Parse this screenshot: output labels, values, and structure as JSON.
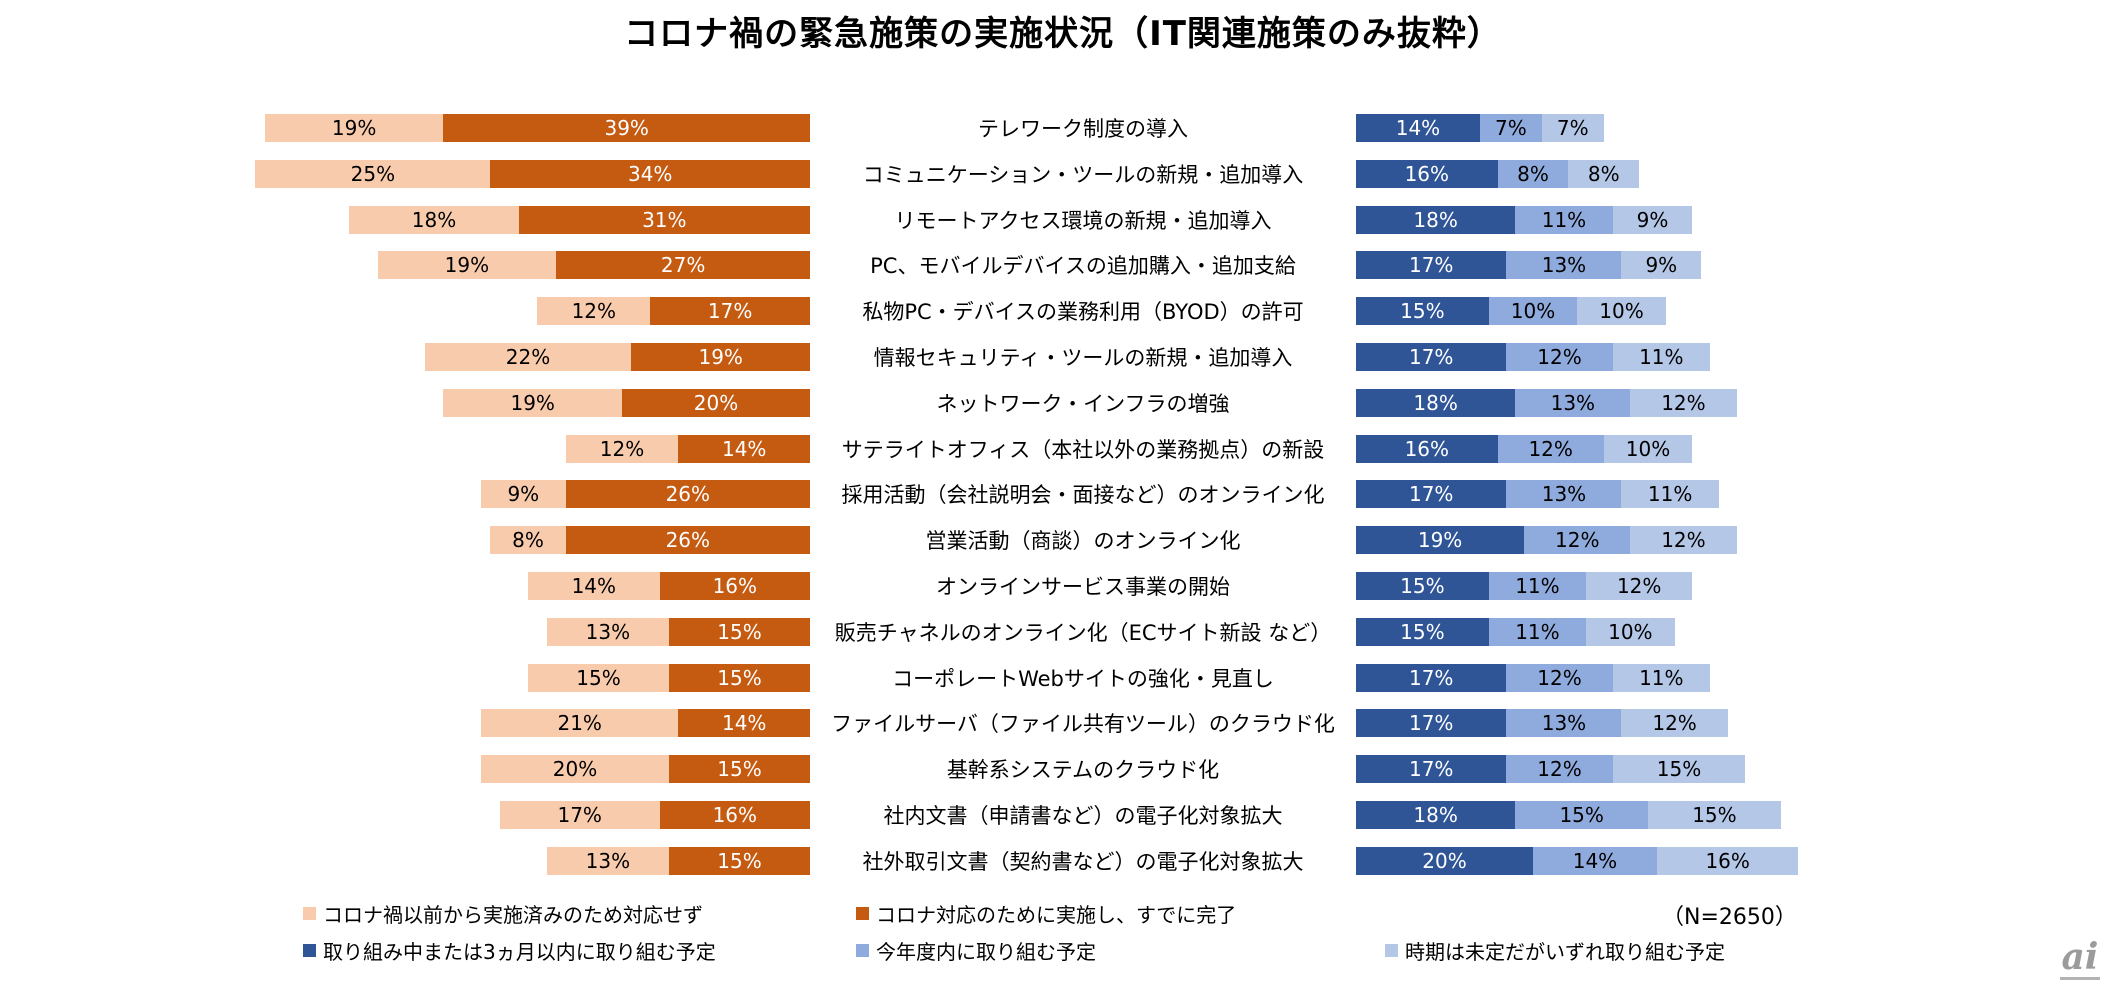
{
  "title": "コロナ禍の緊急施策の実施状況（IT関連施策のみ抜粋）",
  "sample_size": "（N=2650）",
  "watermark": "ai",
  "colors": {
    "pre_covid_done": "#F8CBAD",
    "covid_done": "#C55A11",
    "in_progress_3mo": "#2F5597",
    "this_fiscal_year": "#8FAADC",
    "undecided": "#B4C7E7"
  },
  "legend": [
    {
      "label": "コロナ禍以前から実施済みのため対応せず",
      "color": "#F8CBAD"
    },
    {
      "label": "コロナ対応のために実施し、すでに完了",
      "color": "#C55A11"
    },
    {
      "label": "取り組み中または3ヵ月以内に取り組む予定",
      "color": "#2F5597"
    },
    {
      "label": "今年度内に取り組む予定",
      "color": "#8FAADC"
    },
    {
      "label": "時期は未定だがいずれ取り組む予定",
      "color": "#B4C7E7"
    }
  ],
  "chart_data": {
    "type": "bar",
    "orientation": "horizontal-diverging",
    "unit": "%",
    "grid": false,
    "legend_position": "bottom",
    "categories": [
      "テレワーク制度の導入",
      "コミュニケーション・ツールの新規・追加導入",
      "リモートアクセス環境の新規・追加導入",
      "PC、モバイルデバイスの追加購入・追加支給",
      "私物PC・デバイスの業務利用（BYOD）の許可",
      "情報セキュリティ・ツールの新規・追加導入",
      "ネットワーク・インフラの増強",
      "サテライトオフィス（本社以外の業務拠点）の新設",
      "採用活動（会社説明会・面接など）のオンライン化",
      "営業活動（商談）のオンライン化",
      "オンラインサービス事業の開始",
      "販売チャネルのオンライン化（ECサイト新設 など）",
      "コーポレートWebサイトの強化・見直し",
      "ファイルサーバ（ファイル共有ツール）のクラウド化",
      "基幹系システムのクラウド化",
      "社内文書（申請書など）の電子化対象拡大",
      "社外取引文書（契約書など）の電子化対象拡大"
    ],
    "series": [
      {
        "key": "pre-covid-done",
        "name": "コロナ禍以前から実施済みのため対応せず",
        "side": "left",
        "color": "#F8CBAD",
        "text_color": "#000000",
        "values": [
          19,
          25,
          18,
          19,
          12,
          22,
          19,
          12,
          9,
          8,
          14,
          13,
          15,
          21,
          20,
          17,
          13
        ]
      },
      {
        "key": "covid-done",
        "name": "コロナ対応のために実施し、すでに完了",
        "side": "left",
        "color": "#C55A11",
        "text_color": "#FFFFFF",
        "values": [
          39,
          34,
          31,
          27,
          17,
          19,
          20,
          14,
          26,
          26,
          16,
          15,
          15,
          14,
          15,
          16,
          15
        ]
      },
      {
        "key": "in-progress-3mo",
        "name": "取り組み中または3ヵ月以内に取り組む予定",
        "side": "right",
        "color": "#2F5597",
        "text_color": "#FFFFFF",
        "values": [
          14,
          16,
          18,
          17,
          15,
          17,
          18,
          16,
          17,
          19,
          15,
          15,
          17,
          17,
          17,
          18,
          20
        ]
      },
      {
        "key": "this-fiscal-year",
        "name": "今年度内に取り組む予定",
        "side": "right",
        "color": "#8FAADC",
        "text_color": "#000000",
        "values": [
          7,
          8,
          11,
          13,
          10,
          12,
          13,
          12,
          13,
          12,
          11,
          11,
          12,
          13,
          12,
          15,
          14
        ]
      },
      {
        "key": "undecided",
        "name": "時期は未定だがいずれ取り組む予定",
        "side": "right",
        "color": "#B4C7E7",
        "text_color": "#000000",
        "values": [
          7,
          8,
          9,
          9,
          10,
          11,
          12,
          10,
          11,
          12,
          12,
          10,
          11,
          12,
          15,
          15,
          16
        ]
      }
    ]
  }
}
